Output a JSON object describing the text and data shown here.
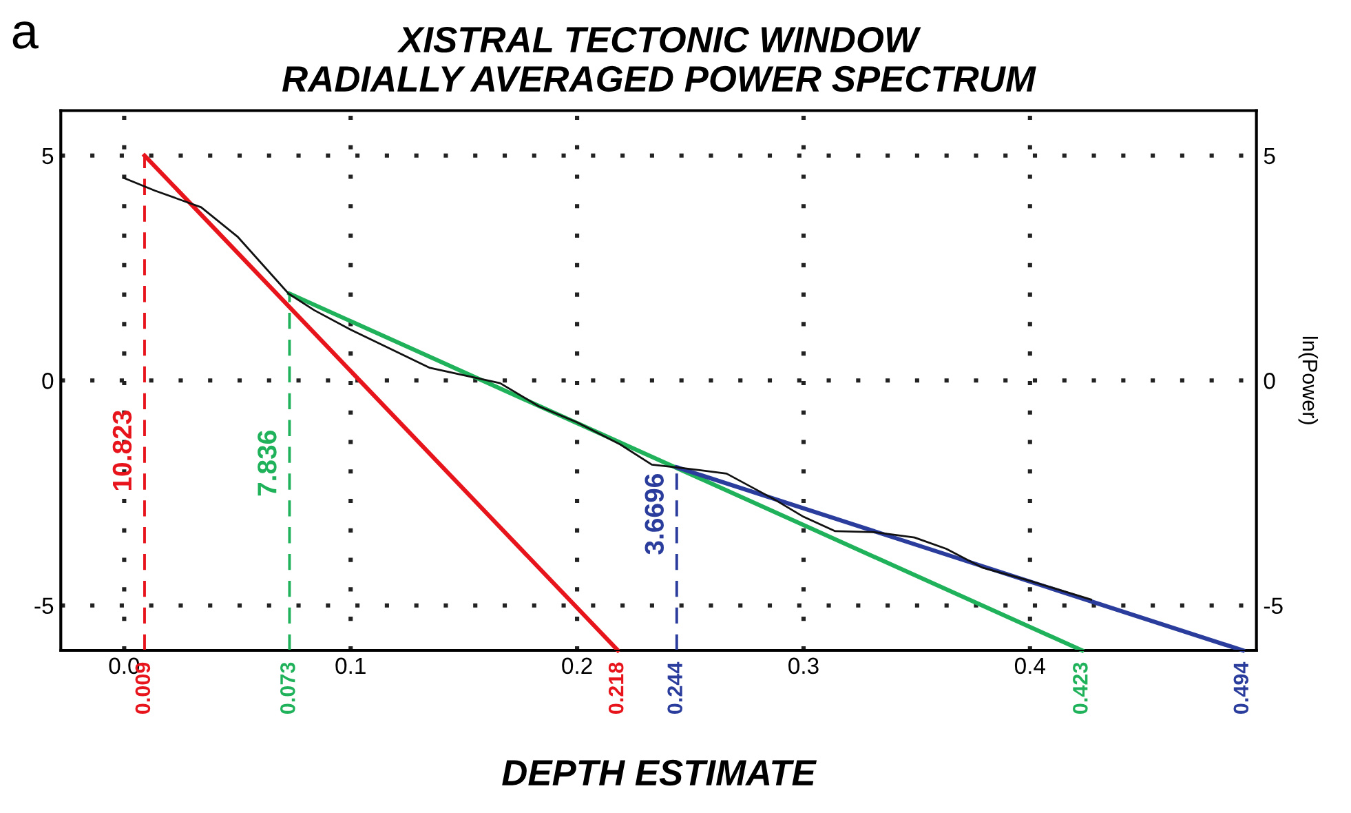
{
  "chart_data": {
    "type": "line",
    "title": "XISTRAL TECTONIC WINDOW\nRADIALLY AVERAGED POWER SPECTRUM",
    "xlabel": "DEPTH ESTIMATE",
    "y2label": "ln(Power)",
    "xlim": [
      -0.028,
      0.5
    ],
    "xticks": [
      {
        "value": 0,
        "label": "0.0"
      },
      0.1,
      0.2,
      0.3,
      0.4
    ],
    "ylim": [
      -6,
      6
    ],
    "yticks": [
      -5,
      0,
      5
    ],
    "y2lim": [
      -6,
      6
    ],
    "y2ticks": [
      -5,
      0,
      5
    ],
    "grid": true,
    "marker": "none",
    "series": [
      {
        "color": "#111111",
        "x": [
          0,
          0.0136,
          0.034,
          0.05,
          0.0726,
          0.084,
          0.1,
          0.135,
          0.166,
          0.183,
          0.2,
          0.219,
          0.233,
          0.244,
          0.266,
          0.287,
          0.3,
          0.314,
          0.331,
          0.349,
          0.363,
          0.379,
          0.399,
          0.427
        ],
        "values": [
          4.5,
          4.22,
          3.85,
          3.2,
          1.93,
          1.56,
          1.13,
          0.28,
          -0.06,
          -0.57,
          -0.93,
          -1.42,
          -1.87,
          -1.93,
          -2.07,
          -2.64,
          -3.03,
          -3.35,
          -3.37,
          -3.49,
          -3.74,
          -4.16,
          -4.44,
          -4.87
        ]
      },
      {
        "color": "#e8141c",
        "x": [
          0.009,
          0.218
        ],
        "values": [
          5,
          -6
        ]
      },
      {
        "color": "#1fb25a",
        "x": [
          0.073,
          0.423
        ],
        "values": [
          1.93,
          -6
        ]
      },
      {
        "color": "#2b3d9c",
        "x": [
          0.244,
          0.494
        ],
        "values": [
          -1.93,
          -6
        ]
      },
      {
        "color": "#e8141c",
        "x": [
          0.009,
          0.009
        ],
        "values": [
          -6,
          5
        ],
        "line_style": "dashed"
      },
      {
        "color": "#1fb25a",
        "x": [
          0.073,
          0.073
        ],
        "values": [
          -6,
          1.93
        ],
        "line_style": "dashed"
      },
      {
        "color": "#2b3d9c",
        "x": [
          0.244,
          0.244
        ],
        "values": [
          -6,
          -1.93
        ],
        "line_style": "dashed"
      }
    ],
    "annotations": [
      "a",
      {
        "text": "10.823",
        "x": 0.009,
        "y": -1.56
      },
      {
        "text": "7.836",
        "x": 0.073,
        "y": -1.84
      },
      {
        "text": "3.6696",
        "x": 0.244,
        "y": -2.97
      },
      {
        "text": "0.009",
        "x": 0.009,
        "y": -6
      },
      {
        "text": "0.073",
        "x": 0.073,
        "y": -6
      },
      {
        "text": "0.218",
        "x": 0.218,
        "y": -6
      },
      {
        "text": "0.244",
        "x": 0.244,
        "y": -6
      },
      {
        "text": "0.423",
        "x": 0.423,
        "y": -6
      },
      {
        "text": "0.494",
        "x": 0.494,
        "y": -6
      }
    ]
  }
}
